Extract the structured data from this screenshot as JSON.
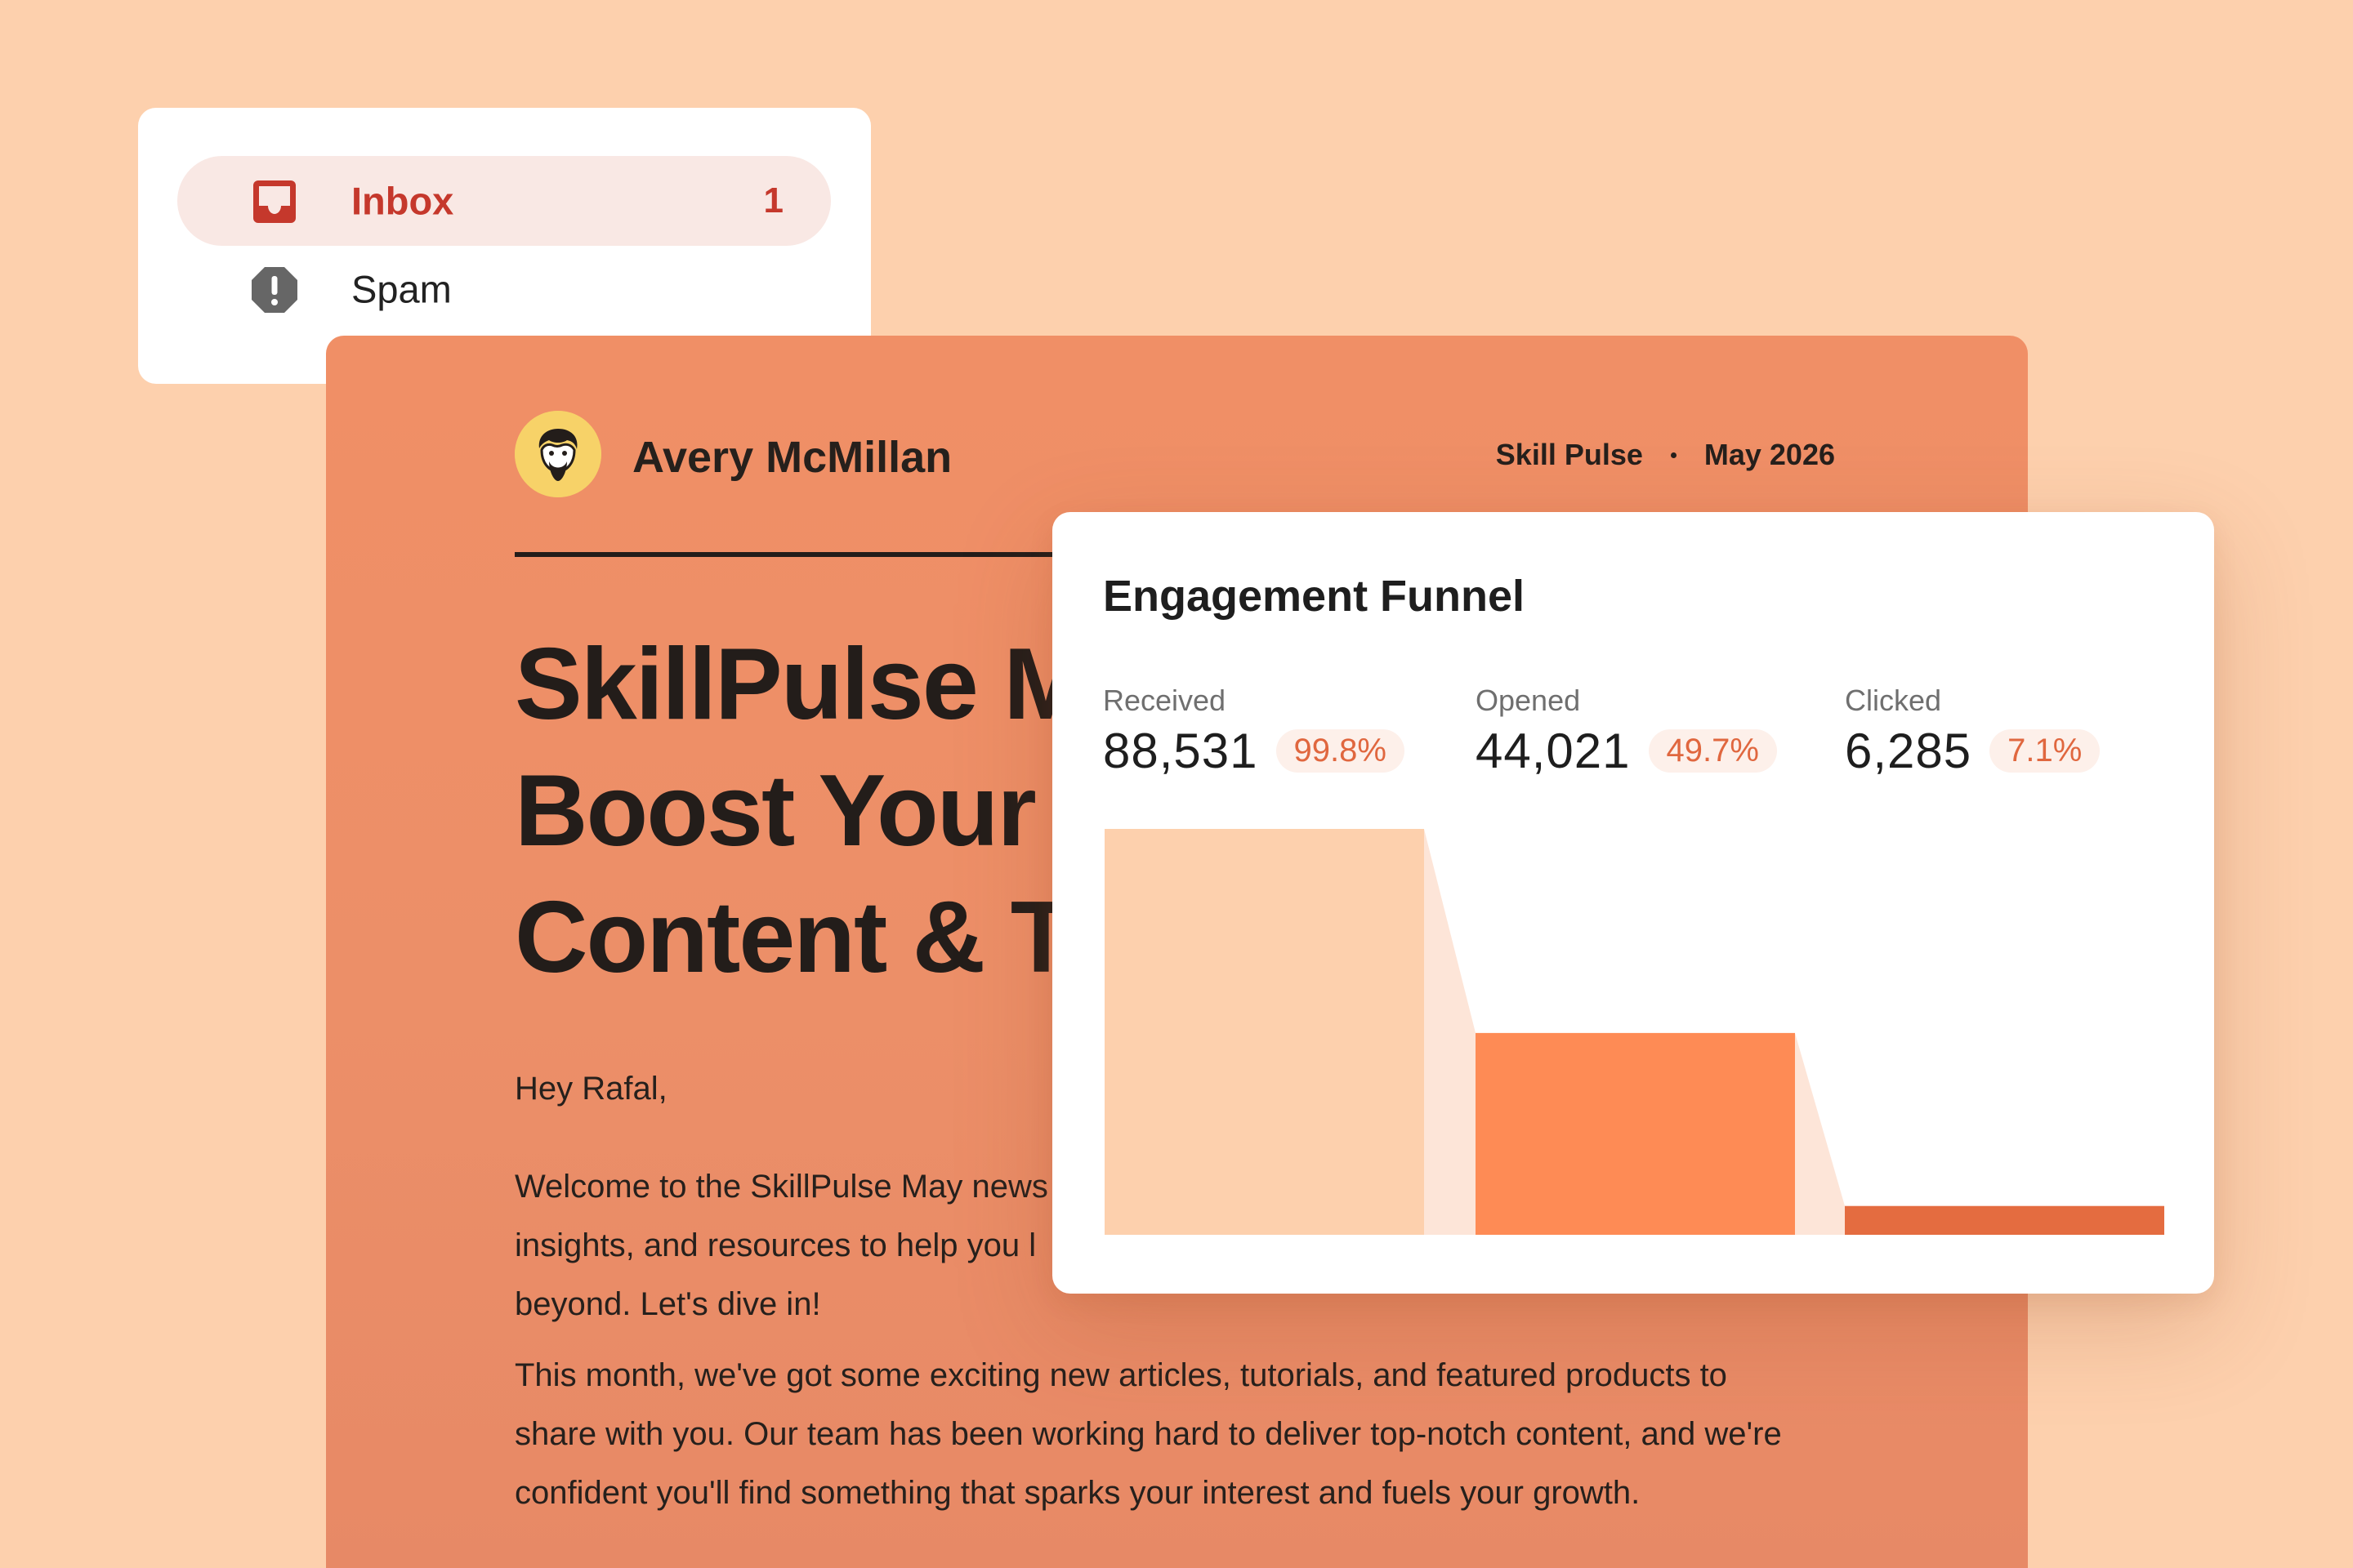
{
  "mail": {
    "items": [
      {
        "label": "Inbox",
        "count": "1",
        "icon": "inbox-icon"
      },
      {
        "label": "Spam",
        "icon": "spam-icon"
      }
    ]
  },
  "email": {
    "sender": "Avery McMillan",
    "newsletter": "Skill Pulse",
    "date": "May 2026",
    "headline_lines": [
      "SkillPulse M",
      "Boost Your S",
      "Content & T"
    ],
    "greeting": "Hey Rafal,",
    "paragraph1_lines": [
      "Welcome to the SkillPulse May news",
      "insights, and resources to help you l",
      "beyond. Let's dive in!"
    ],
    "paragraph2_lines": [
      "This month, we've got some exciting new articles, tutorials, and featured products to",
      "share with you. Our team has been working hard to deliver top-notch content, and we're",
      "confident you'll find something that sparks your interest and fuels your growth."
    ]
  },
  "funnel": {
    "title": "Engagement Funnel",
    "stats": [
      {
        "label": "Received",
        "value": "88,531",
        "pct": "99.8%"
      },
      {
        "label": "Opened",
        "value": "44,021",
        "pct": "49.7%"
      },
      {
        "label": "Clicked",
        "value": "6,285",
        "pct": "7.1%"
      }
    ]
  },
  "chart_data": {
    "type": "bar",
    "title": "Engagement Funnel",
    "categories": [
      "Received",
      "Opened",
      "Clicked"
    ],
    "values": [
      88531,
      44021,
      6285
    ],
    "percentages": [
      99.8,
      49.7,
      7.1
    ],
    "ylim": [
      0,
      88531
    ],
    "grid": false,
    "colors": [
      "#fdd0ad",
      "#fe8b55",
      "#e46c40"
    ],
    "connector_color": "#fde5d8"
  },
  "colors": {
    "background": "#fdd0ad",
    "email_card": "#ef8f66",
    "inbox_accent": "#c5382c",
    "inbox_highlight": "#f9e8e4",
    "avatar_bg": "#f7d268",
    "pct_text": "#e0673f"
  }
}
